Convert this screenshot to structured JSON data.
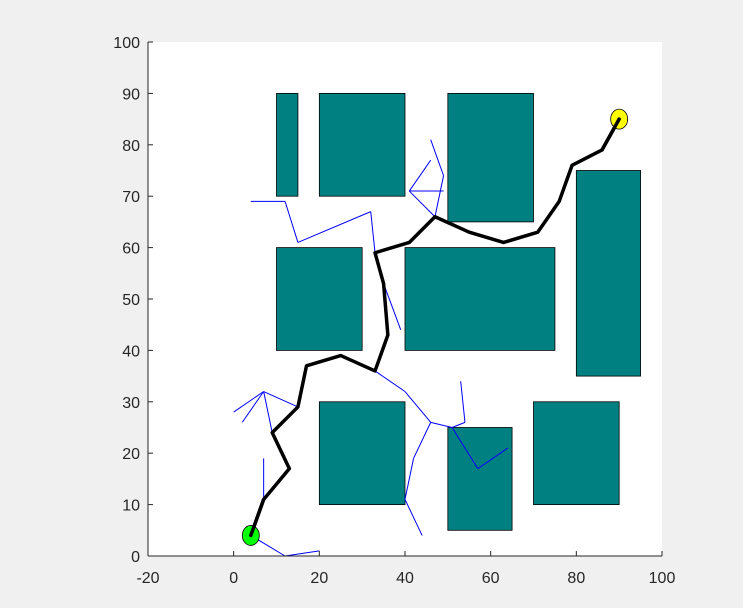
{
  "chart_data": {
    "type": "path-planning-map",
    "xlim": [
      -20,
      100
    ],
    "ylim": [
      0,
      100
    ],
    "xticks": [
      -20,
      0,
      20,
      40,
      60,
      80,
      100
    ],
    "yticks": [
      0,
      10,
      20,
      30,
      40,
      50,
      60,
      70,
      80,
      90,
      100
    ],
    "grid": false,
    "colors": {
      "background": "#ffffff",
      "figure": "#f0f0f0",
      "obstacle": "#008080",
      "tree": "#0000ff",
      "path": "#000000",
      "start": "#00ff00",
      "goal": "#ffff00"
    },
    "obstacles": [
      {
        "x": [
          10,
          15
        ],
        "y": [
          70,
          90
        ]
      },
      {
        "x": [
          20,
          40
        ],
        "y": [
          70,
          90
        ]
      },
      {
        "x": [
          50,
          70
        ],
        "y": [
          65,
          90
        ]
      },
      {
        "x": [
          10,
          30
        ],
        "y": [
          40,
          60
        ]
      },
      {
        "x": [
          40,
          75
        ],
        "y": [
          40,
          60
        ]
      },
      {
        "x": [
          80,
          95
        ],
        "y": [
          35,
          75
        ]
      },
      {
        "x": [
          20,
          40
        ],
        "y": [
          10,
          30
        ]
      },
      {
        "x": [
          50,
          65
        ],
        "y": [
          5,
          25
        ]
      },
      {
        "x": [
          70,
          90
        ],
        "y": [
          10,
          30
        ]
      }
    ],
    "start": {
      "x": 4,
      "y": 4
    },
    "goal": {
      "x": 90,
      "y": 85
    },
    "path": [
      [
        4,
        4
      ],
      [
        7,
        11
      ],
      [
        13,
        17
      ],
      [
        9,
        24
      ],
      [
        15,
        29
      ],
      [
        17,
        37
      ],
      [
        25,
        39
      ],
      [
        33,
        36
      ],
      [
        36,
        43
      ],
      [
        35,
        53
      ],
      [
        33,
        59
      ],
      [
        41,
        61
      ],
      [
        47,
        66
      ],
      [
        55,
        63
      ],
      [
        63,
        61
      ],
      [
        71,
        63
      ],
      [
        76,
        69
      ],
      [
        79,
        76
      ],
      [
        86,
        79
      ],
      [
        90,
        85
      ]
    ],
    "tree_segments": [
      [
        [
          4,
          4
        ],
        [
          12,
          0
        ]
      ],
      [
        [
          12,
          0
        ],
        [
          20,
          1
        ]
      ],
      [
        [
          7,
          11
        ],
        [
          7,
          19
        ]
      ],
      [
        [
          9,
          24
        ],
        [
          7,
          32
        ]
      ],
      [
        [
          7,
          32
        ],
        [
          0,
          28
        ]
      ],
      [
        [
          7,
          32
        ],
        [
          2,
          26
        ]
      ],
      [
        [
          7,
          32
        ],
        [
          15,
          29
        ]
      ],
      [
        [
          33,
          36
        ],
        [
          40,
          32
        ]
      ],
      [
        [
          40,
          32
        ],
        [
          46,
          26
        ]
      ],
      [
        [
          46,
          26
        ],
        [
          51,
          25
        ]
      ],
      [
        [
          51,
          25
        ],
        [
          54,
          26
        ]
      ],
      [
        [
          54,
          26
        ],
        [
          53,
          34
        ]
      ],
      [
        [
          51,
          25
        ],
        [
          57,
          17
        ]
      ],
      [
        [
          57,
          17
        ],
        [
          64,
          21
        ]
      ],
      [
        [
          46,
          26
        ],
        [
          42,
          19
        ]
      ],
      [
        [
          42,
          19
        ],
        [
          40,
          11
        ]
      ],
      [
        [
          40,
          11
        ],
        [
          44,
          4
        ]
      ],
      [
        [
          35,
          53
        ],
        [
          39,
          44
        ]
      ],
      [
        [
          33,
          59
        ],
        [
          32,
          67
        ]
      ],
      [
        [
          32,
          67
        ],
        [
          15,
          61
        ]
      ],
      [
        [
          15,
          61
        ],
        [
          12,
          69
        ]
      ],
      [
        [
          12,
          69
        ],
        [
          4,
          69
        ]
      ],
      [
        [
          47,
          66
        ],
        [
          41,
          71
        ]
      ],
      [
        [
          41,
          71
        ],
        [
          46,
          77
        ]
      ],
      [
        [
          41,
          71
        ],
        [
          49,
          71
        ]
      ],
      [
        [
          47,
          66
        ],
        [
          49,
          74
        ]
      ],
      [
        [
          49,
          74
        ],
        [
          46,
          81
        ]
      ]
    ]
  }
}
